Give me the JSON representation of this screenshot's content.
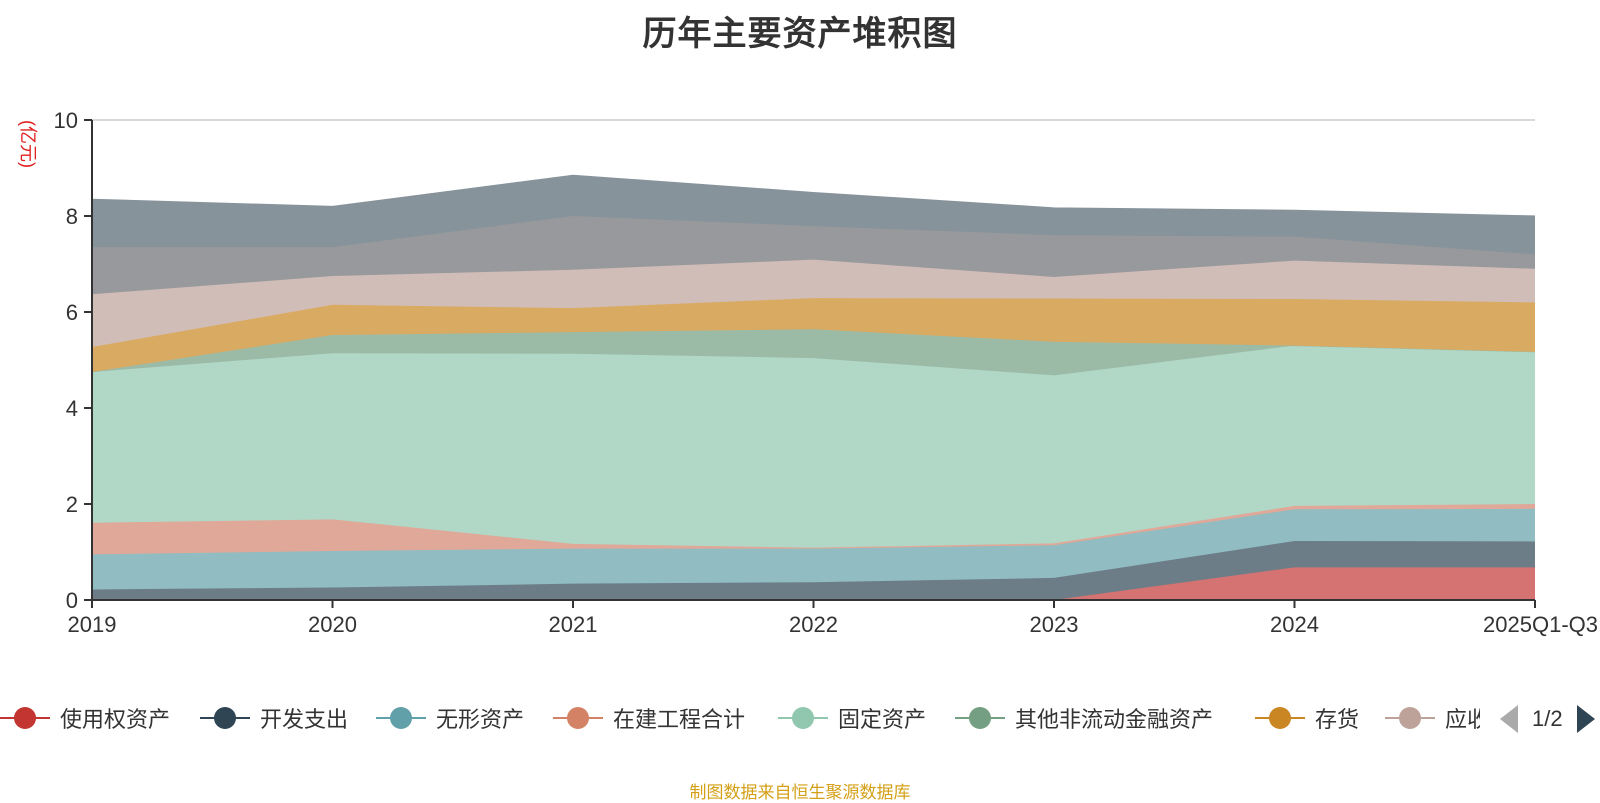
{
  "title": "历年主要资产堆积图",
  "unit_label": "(亿元)",
  "source": "制图数据来自恒生聚源数据库",
  "pager": {
    "text": "1/2"
  },
  "colors": {
    "axis": "#333333",
    "grid": "#cccccc",
    "text": "#333333",
    "unit": "#e02020",
    "source": "#d4a017"
  },
  "chart_data": {
    "type": "area",
    "stacked": true,
    "categories": [
      "2019",
      "2020",
      "2021",
      "2022",
      "2023",
      "2024",
      "2025Q1-Q3"
    ],
    "ylim": [
      0,
      10
    ],
    "yticks": [
      0,
      2,
      4,
      6,
      8,
      10
    ],
    "grid": true,
    "legend_position": "bottom",
    "series": [
      {
        "name": "使用权资产",
        "color": "#c23531",
        "fill": "#d47371",
        "values": [
          0,
          0,
          0,
          0,
          0,
          0.68,
          0.68
        ]
      },
      {
        "name": "开发支出",
        "color": "#2f4554",
        "fill": "#6d7d88",
        "values": [
          0.22,
          0.26,
          0.34,
          0.37,
          0.46,
          0.55,
          0.54
        ]
      },
      {
        "name": "无形资产",
        "color": "#61a0a8",
        "fill": "#90bcc2",
        "values": [
          0.73,
          0.76,
          0.73,
          0.7,
          0.68,
          0.66,
          0.68
        ]
      },
      {
        "name": "在建工程合计",
        "color": "#d48265",
        "fill": "#e0a898",
        "values": [
          0.66,
          0.66,
          0.1,
          0.02,
          0.04,
          0.07,
          0.1
        ]
      },
      {
        "name": "固定资产",
        "color": "#91c7ae",
        "fill": "#b1d8c6",
        "values": [
          3.14,
          3.46,
          3.96,
          3.95,
          3.5,
          3.34,
          3.17
        ]
      },
      {
        "name": "其他非流动金融资产",
        "color": "#749f83",
        "fill": "#9bbba7",
        "values": [
          0,
          0.38,
          0.45,
          0.6,
          0.7,
          0,
          0
        ]
      },
      {
        "name": "存货",
        "color": "#ca8622",
        "fill": "#d9aa62",
        "values": [
          0.52,
          0.63,
          0.5,
          0.65,
          0.9,
          0.97,
          1.03
        ]
      },
      {
        "name": "应收账款",
        "color": "#bda29a",
        "fill": "#d1bdb7",
        "values": [
          1.1,
          0.6,
          0.8,
          0.8,
          0.45,
          0.8,
          0.7
        ]
      },
      {
        "name": "",
        "color": "#6e7074",
        "fill": "#98999c",
        "values": [
          0.98,
          0.6,
          1.12,
          0.7,
          0.87,
          0.5,
          0.3
        ]
      },
      {
        "name": "",
        "color": "#546570",
        "fill": "#87939b",
        "values": [
          1.0,
          0.85,
          0.85,
          0.7,
          0.57,
          0.55,
          0.8
        ]
      }
    ]
  }
}
